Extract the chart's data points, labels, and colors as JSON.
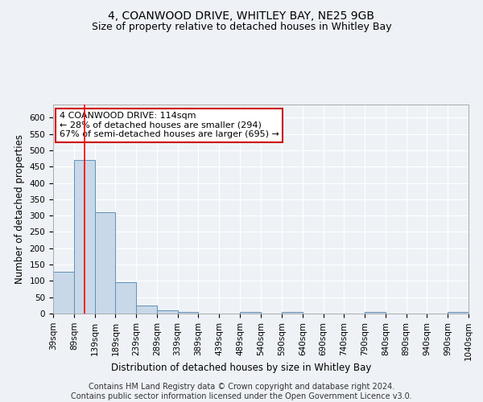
{
  "title": "4, COANWOOD DRIVE, WHITLEY BAY, NE25 9GB",
  "subtitle": "Size of property relative to detached houses in Whitley Bay",
  "xlabel": "Distribution of detached houses by size in Whitley Bay",
  "ylabel": "Number of detached properties",
  "footnote1": "Contains HM Land Registry data © Crown copyright and database right 2024.",
  "footnote2": "Contains public sector information licensed under the Open Government Licence v3.0.",
  "annotation_line1": "4 COANWOOD DRIVE: 114sqm",
  "annotation_line2": "← 28% of detached houses are smaller (294)",
  "annotation_line3": "67% of semi-detached houses are larger (695) →",
  "bar_left_edges": [
    39,
    89,
    139,
    189,
    239,
    289,
    339,
    389,
    439,
    489,
    540,
    590,
    640,
    690,
    740,
    790,
    840,
    890,
    940,
    990
  ],
  "bar_widths": [
    50,
    50,
    50,
    50,
    50,
    50,
    50,
    50,
    50,
    51,
    50,
    50,
    50,
    50,
    50,
    50,
    50,
    50,
    50,
    50
  ],
  "bar_heights": [
    128,
    470,
    311,
    95,
    25,
    10,
    5,
    0,
    0,
    5,
    0,
    5,
    0,
    0,
    0,
    5,
    0,
    0,
    0,
    5
  ],
  "bar_color": "#c8d8e8",
  "bar_edgecolor": "#6090b8",
  "redline_x": 114,
  "ylim": [
    0,
    640
  ],
  "yticks": [
    0,
    50,
    100,
    150,
    200,
    250,
    300,
    350,
    400,
    450,
    500,
    550,
    600
  ],
  "xlim": [
    39,
    1040
  ],
  "xtick_labels": [
    "39sqm",
    "89sqm",
    "139sqm",
    "189sqm",
    "239sqm",
    "289sqm",
    "339sqm",
    "389sqm",
    "439sqm",
    "489sqm",
    "540sqm",
    "590sqm",
    "640sqm",
    "690sqm",
    "740sqm",
    "790sqm",
    "840sqm",
    "890sqm",
    "940sqm",
    "990sqm",
    "1040sqm"
  ],
  "xtick_positions": [
    39,
    89,
    139,
    189,
    239,
    289,
    339,
    389,
    439,
    489,
    540,
    590,
    640,
    690,
    740,
    790,
    840,
    890,
    940,
    990,
    1040
  ],
  "background_color": "#eef2f7",
  "plot_bg_color": "#eef2f7",
  "annotation_box_edgecolor": "#cc0000",
  "annotation_box_facecolor": "#ffffff",
  "grid_color": "#ffffff",
  "title_fontsize": 10,
  "subtitle_fontsize": 9,
  "tick_fontsize": 7.5,
  "label_fontsize": 8.5,
  "footnote_fontsize": 7,
  "annotation_fontsize": 8
}
